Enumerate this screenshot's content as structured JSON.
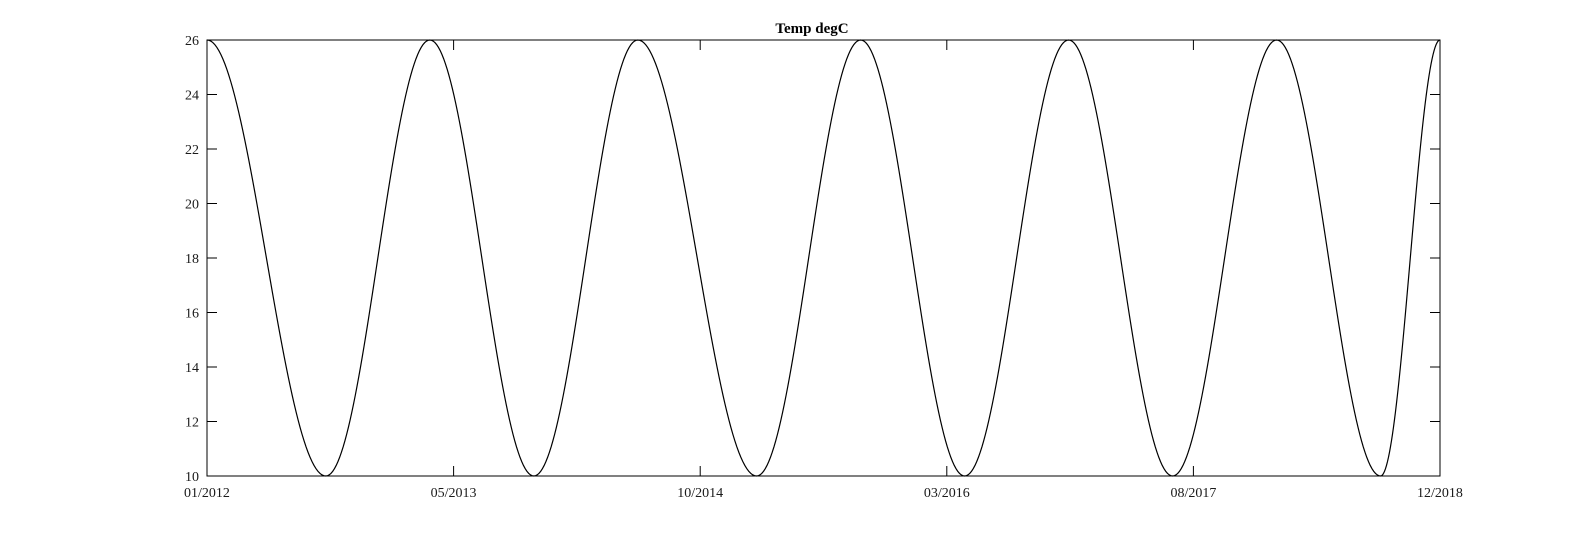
{
  "chart_data": {
    "type": "line",
    "title": "Temp degC",
    "xlabel": "",
    "ylabel": "",
    "xlim": [
      "2012-01",
      "2018-12"
    ],
    "ylim": [
      10,
      26
    ],
    "grid": false,
    "x_tick_labels": [
      "01/2012",
      "05/2013",
      "10/2014",
      "03/2016",
      "08/2017",
      "12/2018"
    ],
    "y_ticks": [
      10,
      12,
      14,
      16,
      18,
      20,
      22,
      24,
      26
    ],
    "line_color": "#000000",
    "series": [
      {
        "points": [
          {
            "x": "2012-01",
            "y": 26
          },
          {
            "x": "2012-09",
            "y": 10
          },
          {
            "x": "2013-04",
            "y": 26
          },
          {
            "x": "2013-11",
            "y": 10
          },
          {
            "x": "2014-06",
            "y": 26
          },
          {
            "x": "2015-02",
            "y": 10
          },
          {
            "x": "2015-09",
            "y": 26
          },
          {
            "x": "2016-04",
            "y": 10
          },
          {
            "x": "2016-11",
            "y": 26
          },
          {
            "x": "2017-06",
            "y": 10
          },
          {
            "x": "2018-01",
            "y": 26
          },
          {
            "x": "2018-08",
            "y": 10
          },
          {
            "x": "2018-12",
            "y": 26
          }
        ]
      }
    ]
  }
}
